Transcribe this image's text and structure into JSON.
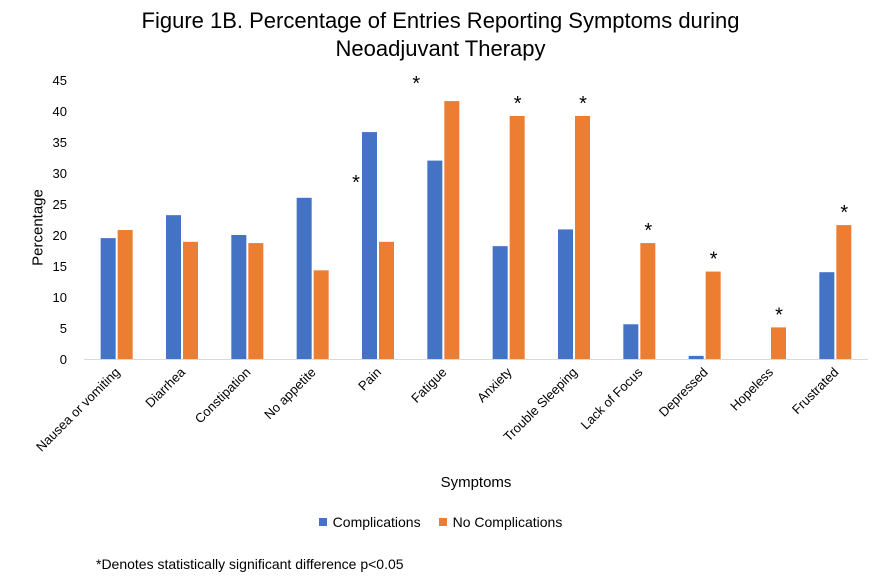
{
  "chart_data": {
    "type": "bar",
    "title_lines": [
      "Figure 1B. Percentage of Entries Reporting Symptoms during",
      "Neoadjuvant Therapy"
    ],
    "xlabel": "Symptoms",
    "ylabel": "Percentage",
    "ylim": [
      0,
      45
    ],
    "yticks": [
      0,
      5,
      10,
      15,
      20,
      25,
      30,
      35,
      40,
      45
    ],
    "grid": false,
    "legend_position": "bottom",
    "categories": [
      "Nausea or vomiting",
      "Diarrhea",
      "Constipation",
      "No appetite",
      "Pain",
      "Fatigue",
      "Anxiety",
      "Trouble Sleeping",
      "Lack of Focus",
      "Depressed",
      "Hopeless",
      "Frustrated"
    ],
    "series": [
      {
        "name": "Complications",
        "color": "#4472C4",
        "values": [
          19.5,
          23.2,
          20.0,
          26.0,
          36.6,
          32.0,
          18.2,
          20.9,
          5.6,
          0.5,
          0.0,
          14.0
        ]
      },
      {
        "name": "No Complications",
        "color": "#ED7D31",
        "values": [
          20.8,
          18.9,
          18.7,
          14.3,
          18.9,
          41.6,
          39.2,
          39.2,
          18.7,
          14.1,
          5.1,
          21.6
        ]
      }
    ],
    "significance_marker": "*",
    "significant_categories": [
      "Pain",
      "Fatigue",
      "Anxiety",
      "Trouble Sleeping",
      "Lack of Focus",
      "Depressed",
      "Hopeless",
      "Frustrated"
    ],
    "footnote": "*Denotes statistically significant difference p<0.05"
  }
}
